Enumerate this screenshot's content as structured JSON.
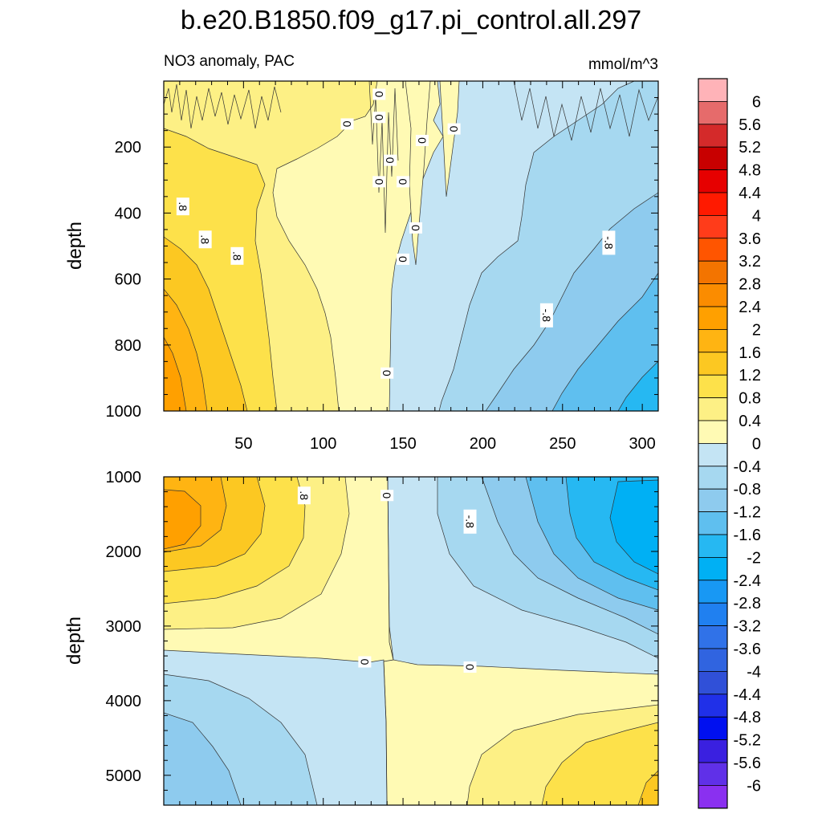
{
  "chart_data": {
    "type": "contour",
    "title": "b.e20.B1850.f09_g17.pi_control.all.297",
    "variable_label": "NO3 anomaly, PAC",
    "units": "mmol/m^3",
    "xlabel": "",
    "ylabel": "depth",
    "panels": [
      {
        "name": "upper",
        "xlim": [
          0,
          310
        ],
        "ylim": [
          1000,
          0
        ],
        "x_ticks": [
          50,
          100,
          150,
          200,
          250,
          300
        ],
        "y_ticks": [
          200,
          400,
          600,
          800,
          1000
        ],
        "contour_labels": [
          {
            "x": 115,
            "y": 130,
            "text": "0"
          },
          {
            "x": 135,
            "y": 40,
            "text": "0"
          },
          {
            "x": 135,
            "y": 110,
            "text": "0"
          },
          {
            "x": 142,
            "y": 240,
            "text": "0"
          },
          {
            "x": 135,
            "y": 305,
            "text": "0"
          },
          {
            "x": 150,
            "y": 305,
            "text": "0"
          },
          {
            "x": 162,
            "y": 180,
            "text": "0"
          },
          {
            "x": 182,
            "y": 145,
            "text": "0"
          },
          {
            "x": 158,
            "y": 445,
            "text": "0"
          },
          {
            "x": 150,
            "y": 540,
            "text": "0"
          },
          {
            "x": 140,
            "y": 885,
            "text": "0"
          },
          {
            "x": 12,
            "y": 380,
            "text": ".8"
          },
          {
            "x": 26,
            "y": 480,
            "text": ".8"
          },
          {
            "x": 46,
            "y": 530,
            "text": ".8"
          },
          {
            "x": 279,
            "y": 490,
            "text": "-.8"
          },
          {
            "x": 240,
            "y": 710,
            "text": "-.8"
          }
        ]
      },
      {
        "name": "lower",
        "xlim": [
          0,
          310
        ],
        "ylim": [
          5400,
          1000
        ],
        "x_ticks": [],
        "y_ticks": [
          1000,
          2000,
          3000,
          4000,
          5000
        ],
        "contour_labels": [
          {
            "x": 88,
            "y": 1250,
            "text": ".8"
          },
          {
            "x": 140,
            "y": 1250,
            "text": "0"
          },
          {
            "x": 192,
            "y": 1600,
            "text": "-.8"
          },
          {
            "x": 126,
            "y": 3480,
            "text": "0"
          },
          {
            "x": 192,
            "y": 3550,
            "text": "0"
          }
        ]
      }
    ],
    "colorbar": {
      "levels_top_to_bottom": [
        "6",
        "5.6",
        "5.2",
        "4.8",
        "4.4",
        "4",
        "3.6",
        "3.2",
        "2.8",
        "2.4",
        "2",
        "1.6",
        "1.2",
        "0.8",
        "0.4",
        "0",
        "-0.4",
        "-0.8",
        "-1.2",
        "-1.6",
        "-2",
        "-2.4",
        "-2.8",
        "-3.2",
        "-3.6",
        "-4",
        "-4.4",
        "-4.8",
        "-5.2",
        "-5.6",
        "-6"
      ],
      "colors_top_to_bottom": [
        "#ffb3b8",
        "#e66b6b",
        "#d42a2a",
        "#c80000",
        "#e60000",
        "#ff1a00",
        "#ff3c1a",
        "#ff5500",
        "#f37400",
        "#fb8c00",
        "#ffa000",
        "#ffb412",
        "#fcc822",
        "#fde14a",
        "#fdf085",
        "#fffab4",
        "#c4e4f4",
        "#a6d8f0",
        "#8ecbee",
        "#5fbfef",
        "#26b8f2",
        "#00b0f4",
        "#1898f4",
        "#2080f0",
        "#3072e8",
        "#3064e0",
        "#3050d8",
        "#2030e8",
        "#0010f0",
        "#3a20e0",
        "#6030e8",
        "#8a30f0"
      ]
    }
  }
}
